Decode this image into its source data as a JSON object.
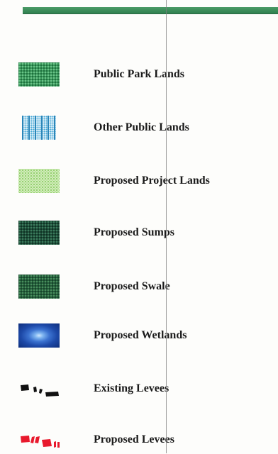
{
  "legend": {
    "items": [
      {
        "label": "Public Park Lands",
        "symbol": "park-lands-swatch",
        "color": "#3a9a5c"
      },
      {
        "label": "Other Public Lands",
        "symbol": "other-public-lands-swatch",
        "color": "#2b86b9"
      },
      {
        "label": "Proposed Project Lands",
        "symbol": "project-lands-swatch",
        "color": "#b8e29a"
      },
      {
        "label": "Proposed Sumps",
        "symbol": "sumps-swatch",
        "color": "#1f4f3a"
      },
      {
        "label": "Proposed Swale",
        "symbol": "swale-swatch",
        "color": "#265f3c"
      },
      {
        "label": "Proposed Wetlands",
        "symbol": "wetlands-swatch",
        "color": "#1d49a8"
      },
      {
        "label": "Existing Levees",
        "symbol": "existing-levee-dashes",
        "color": "#111111"
      },
      {
        "label": "Proposed Levees",
        "symbol": "proposed-levee-dashes",
        "color": "#e8192c"
      }
    ]
  },
  "colors": {
    "top_band": "#3a8c5a",
    "background": "#fdfdfb"
  }
}
